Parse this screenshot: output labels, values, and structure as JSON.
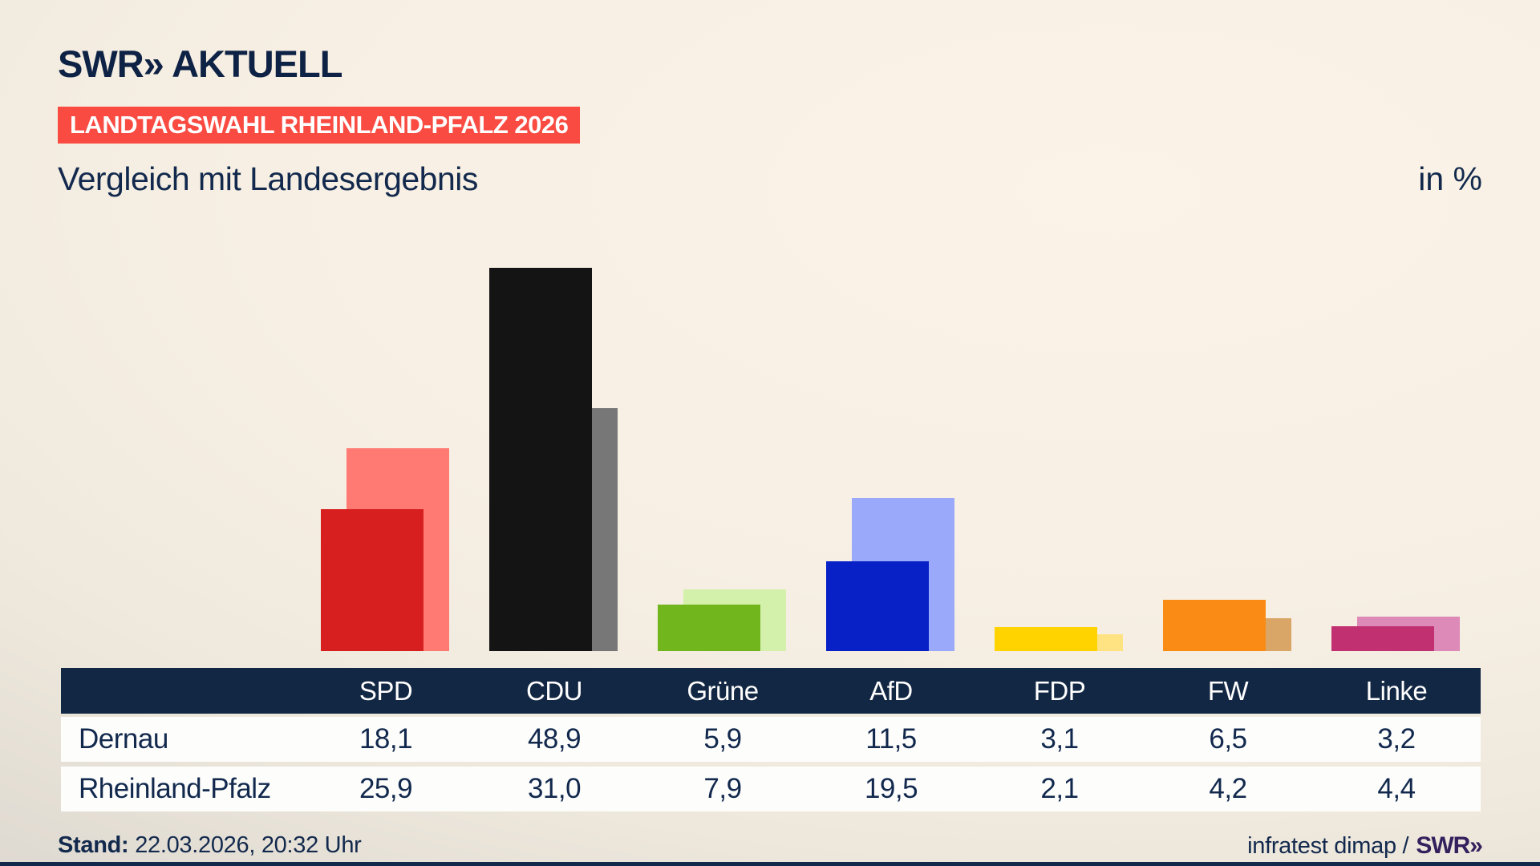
{
  "brand": {
    "logo": "SWR» AKTUELL"
  },
  "header": {
    "badge": "LANDTAGSWAHL RHEINLAND-PFALZ 2026",
    "title": "Vergleich mit Landesergebnis",
    "unit_label": "in %"
  },
  "chart_data": {
    "type": "bar",
    "title": "Vergleich mit Landesergebnis",
    "unit": "in %",
    "categories": [
      "SPD",
      "CDU",
      "Grüne",
      "AfD",
      "FDP",
      "FW",
      "Linke"
    ],
    "series": [
      {
        "name": "Dernau",
        "values": [
          18.1,
          48.9,
          5.9,
          11.5,
          3.1,
          6.5,
          3.2
        ]
      },
      {
        "name": "Rheinland-Pfalz",
        "values": [
          25.9,
          31.0,
          7.9,
          19.5,
          2.1,
          4.2,
          4.4
        ]
      }
    ],
    "colors": {
      "foreground": [
        "#d71f1f",
        "#141414",
        "#71b61c",
        "#0721c7",
        "#ffd300",
        "#fa8c16",
        "#c13071"
      ],
      "background": [
        "#fe7a72",
        "#777777",
        "#d3f1ab",
        "#9aa9f9",
        "#ffe382",
        "#d9a668",
        "#dd8ab8"
      ]
    },
    "ylim": [
      0,
      52
    ],
    "grid": false,
    "legend": "none (values in table below)"
  },
  "table": {
    "header_label": "",
    "rows": [
      {
        "label": "Dernau",
        "values": [
          "18,1",
          "48,9",
          "5,9",
          "11,5",
          "3,1",
          "6,5",
          "3,2"
        ]
      },
      {
        "label": "Rheinland-Pfalz",
        "values": [
          "25,9",
          "31,0",
          "7,9",
          "19,5",
          "2,1",
          "4,2",
          "4,4"
        ]
      }
    ]
  },
  "footer": {
    "stand_label": "Stand:",
    "stand_value": "22.03.2026, 20:32 Uhr",
    "source_text": "infratest dimap /",
    "source_brand": "SWR»"
  }
}
